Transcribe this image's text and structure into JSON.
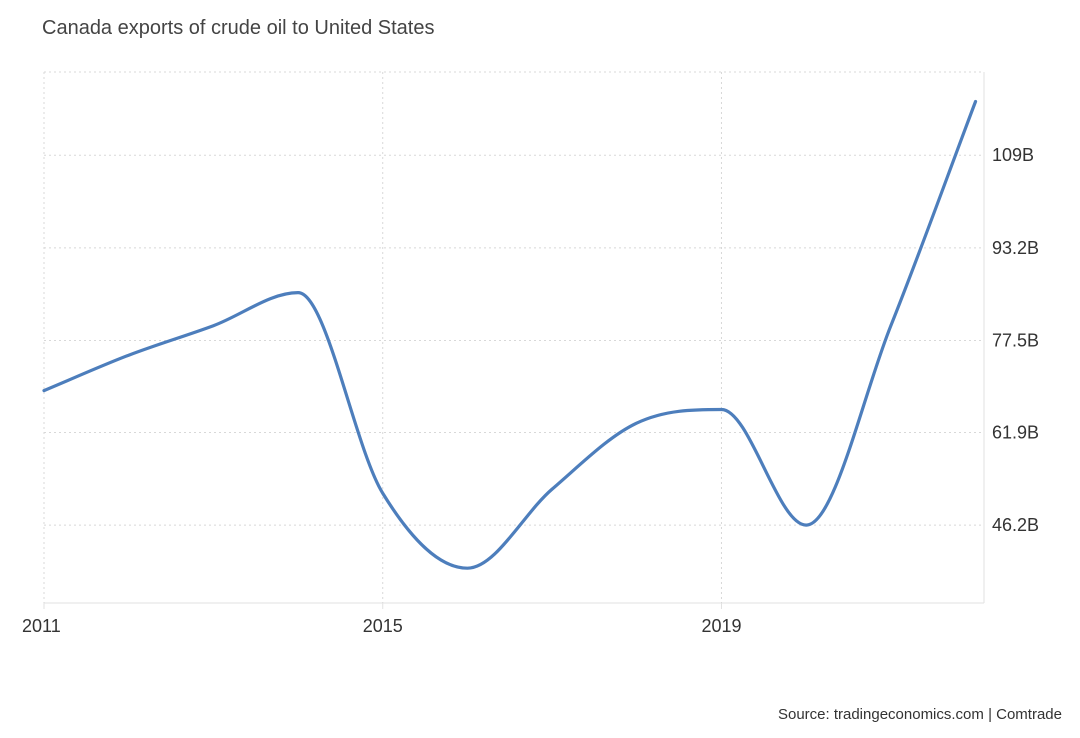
{
  "title": "Canada exports of crude oil to United States",
  "source": "Source: tradingeconomics.com | Comtrade",
  "colors": {
    "line": "#4d7ebc"
  },
  "chart_data": {
    "type": "line",
    "title": "Canada exports of crude oil to United States",
    "xlabel": "",
    "ylabel": "",
    "unit": "USD billions",
    "x": [
      2011,
      2012,
      2013,
      2014,
      2015,
      2016,
      2017,
      2018,
      2019,
      2020,
      2021,
      2022
    ],
    "values": [
      69.0,
      75.0,
      80.0,
      85.6,
      51.6,
      38.9,
      52.3,
      63.5,
      65.8,
      46.2,
      80.0,
      118.0
    ],
    "xlim": [
      2011,
      2022.1
    ],
    "ylim": [
      33.0,
      123.0
    ],
    "y_ticks": [
      {
        "value": 46.2,
        "label": "46.2B"
      },
      {
        "value": 61.9,
        "label": "61.9B"
      },
      {
        "value": 77.5,
        "label": "77.5B"
      },
      {
        "value": 93.2,
        "label": "93.2B"
      },
      {
        "value": 108.9,
        "label": "109B"
      }
    ],
    "x_ticks": [
      {
        "value": 2011,
        "label": "2011"
      },
      {
        "value": 2015,
        "label": "2015"
      },
      {
        "value": 2019,
        "label": "2019"
      }
    ],
    "grid": true
  }
}
